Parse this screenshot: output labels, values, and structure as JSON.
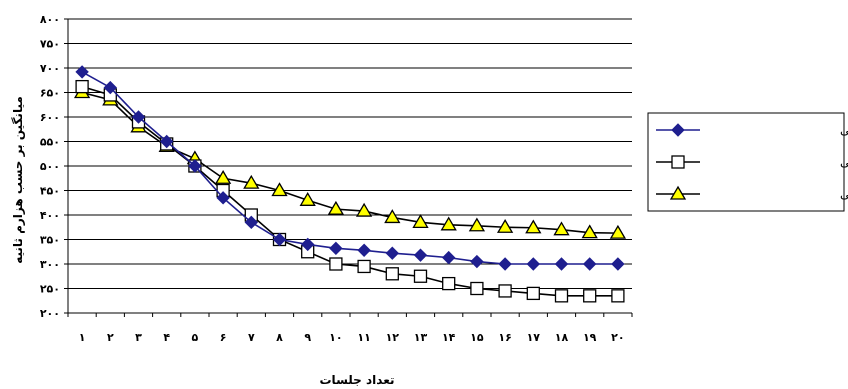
{
  "chart_data": {
    "type": "line",
    "title": "",
    "xlabel": "تعداد جلسات",
    "ylabel": "میانگین بر حسب هزارم ثانیه",
    "x": [
      1,
      2,
      3,
      4,
      5,
      6,
      7,
      8,
      9,
      10,
      11,
      12,
      13,
      14,
      15,
      16,
      17,
      18,
      19,
      20
    ],
    "x_tick_labels": [
      "۱",
      "۲",
      "۳",
      "۴",
      "۵",
      "۶",
      "۷",
      "۸",
      "۹",
      "۱۰",
      "۱۱",
      "۱۲",
      "۱۳",
      "۱۴",
      "۱۵",
      "۱۶",
      "۱۷",
      "۱۸",
      "۱۹",
      "۲۰"
    ],
    "ylim": [
      200,
      800
    ],
    "y_ticks": [
      200,
      250,
      300,
      350,
      400,
      450,
      500,
      550,
      600,
      650,
      700,
      750,
      800
    ],
    "y_tick_labels": [
      "۲۰۰",
      "۲۵۰",
      "۳۰۰",
      "۳۵۰",
      "۴۰۰",
      "۴۵۰",
      "۵۰۰",
      "۵۵۰",
      "۶۰۰",
      "۶۵۰",
      "۷۰۰",
      "۷۵۰",
      "۸۰۰"
    ],
    "grid": "horizontal",
    "legend_position": "right",
    "series": [
      {
        "name": "گروه بدنی",
        "color": "#1f1f8f",
        "marker": "diamond",
        "values": [
          692,
          660,
          600,
          550,
          500,
          435,
          385,
          350,
          340,
          332,
          328,
          322,
          318,
          313,
          305,
          300,
          300,
          300,
          300,
          300
        ]
      },
      {
        "name": "گروه ذهنی + بدنی",
        "color": "#000000",
        "marker": "square-open",
        "values": [
          662,
          645,
          590,
          545,
          500,
          450,
          400,
          350,
          325,
          300,
          295,
          280,
          275,
          260,
          250,
          245,
          240,
          235,
          235,
          235
        ]
      },
      {
        "name": "گروه بدنی + ذهنی",
        "color": "#000000",
        "marker": "triangle-yellow",
        "values": [
          650,
          635,
          580,
          540,
          515,
          475,
          465,
          450,
          430,
          412,
          408,
          395,
          385,
          380,
          378,
          375,
          374,
          370,
          364,
          363
        ]
      }
    ]
  }
}
